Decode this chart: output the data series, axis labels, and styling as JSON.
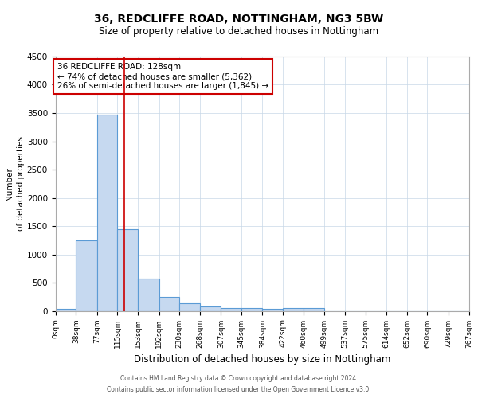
{
  "title": "36, REDCLIFFE ROAD, NOTTINGHAM, NG3 5BW",
  "subtitle": "Size of property relative to detached houses in Nottingham",
  "xlabel": "Distribution of detached houses by size in Nottingham",
  "ylabel": "Number\nof detached properties",
  "annotation_line1": "36 REDCLIFFE ROAD: 128sqm",
  "annotation_line2": "← 74% of detached houses are smaller (5,362)",
  "annotation_line3": "26% of semi-detached houses are larger (1,845) →",
  "bin_edges": [
    0,
    38,
    77,
    115,
    153,
    192,
    230,
    268,
    307,
    345,
    384,
    422,
    460,
    499,
    537,
    575,
    614,
    652,
    690,
    729,
    767
  ],
  "bin_labels": [
    "0sqm",
    "38sqm",
    "77sqm",
    "115sqm",
    "153sqm",
    "192sqm",
    "230sqm",
    "268sqm",
    "307sqm",
    "345sqm",
    "384sqm",
    "422sqm",
    "460sqm",
    "499sqm",
    "537sqm",
    "575sqm",
    "614sqm",
    "652sqm",
    "690sqm",
    "729sqm",
    "767sqm"
  ],
  "bar_values": [
    30,
    1250,
    3475,
    1450,
    575,
    250,
    130,
    80,
    45,
    50,
    40,
    50,
    50,
    0,
    0,
    0,
    0,
    0,
    0,
    0
  ],
  "bar_color": "#c6d9f0",
  "bar_edge_color": "#5b9bd5",
  "vline_color": "#cc0000",
  "vline_x": 128,
  "annotation_box_color": "#cc0000",
  "ylim": [
    0,
    4500
  ],
  "yticks": [
    0,
    500,
    1000,
    1500,
    2000,
    2500,
    3000,
    3500,
    4000,
    4500
  ],
  "grid_color": "#c8d8e8",
  "footer_line1": "Contains HM Land Registry data © Crown copyright and database right 2024.",
  "footer_line2": "Contains public sector information licensed under the Open Government Licence v3.0.",
  "title_fontsize": 10,
  "subtitle_fontsize": 8.5,
  "xlabel_fontsize": 8.5,
  "ylabel_fontsize": 7.5,
  "xtick_fontsize": 6.5,
  "ytick_fontsize": 7.5,
  "footer_fontsize": 5.5,
  "ann_fontsize": 7.5
}
